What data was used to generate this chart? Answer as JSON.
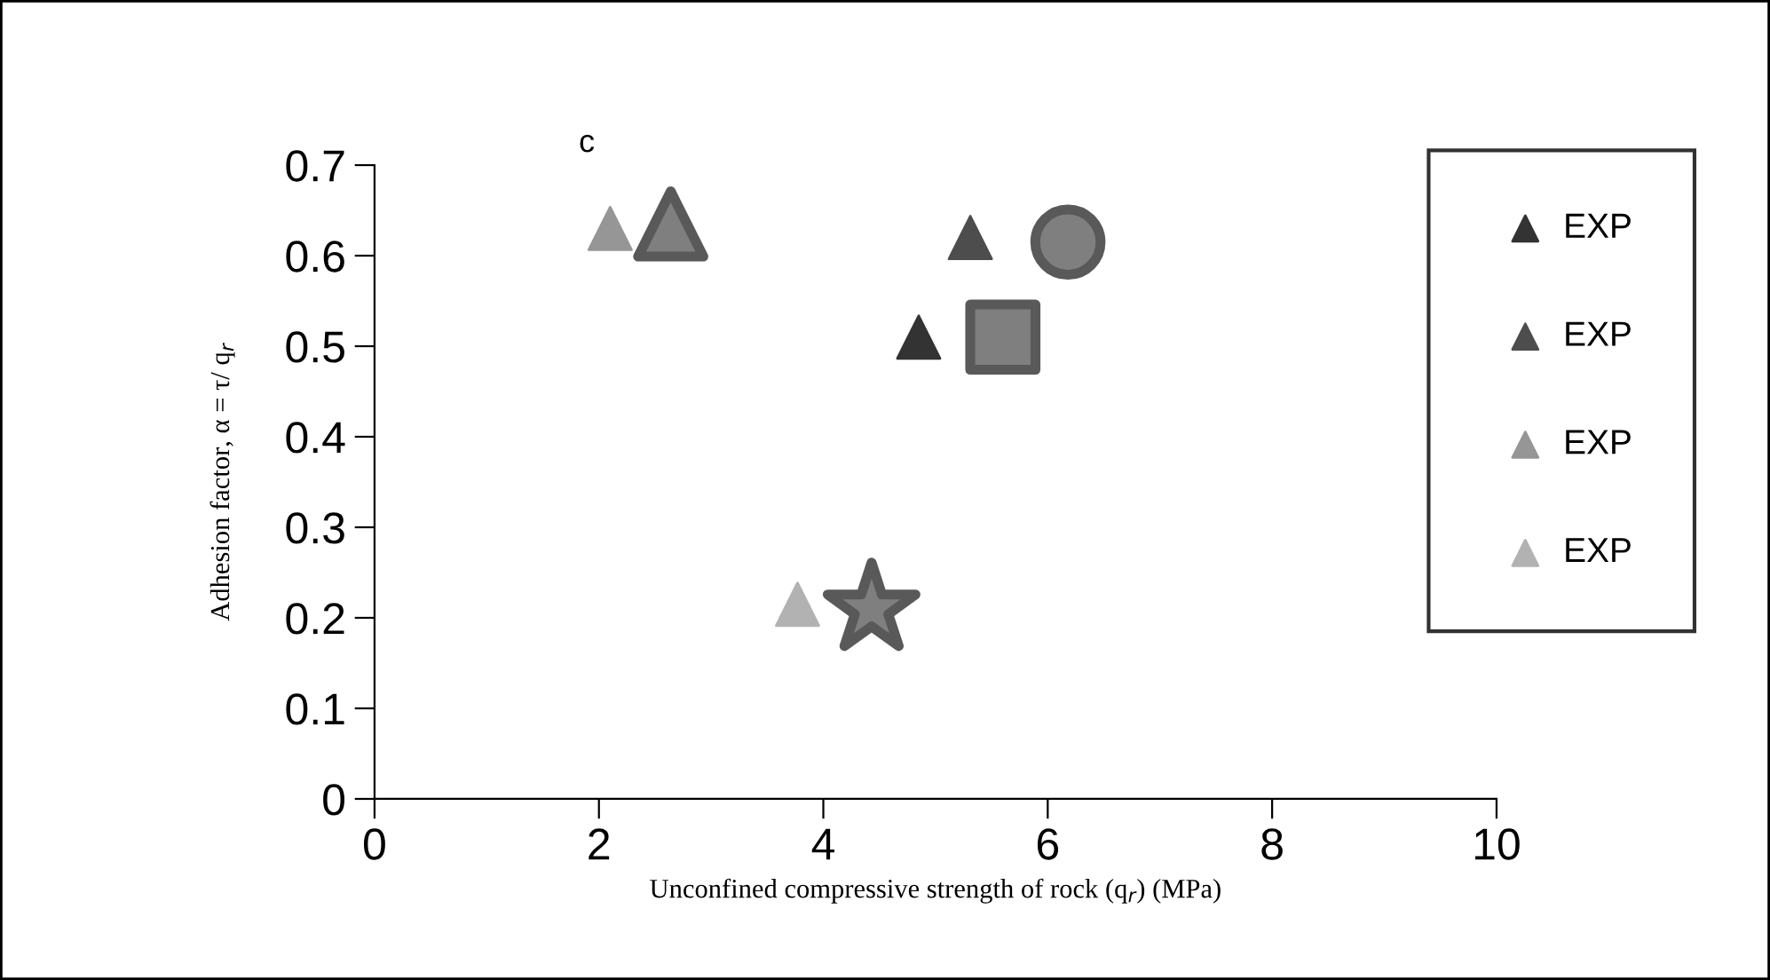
{
  "chart_data": {
    "type": "scatter",
    "xlabel": "Unconfined compressive strength of rock (q$_{r}$) (MPa)",
    "ylabel": "Adhesion factor, α = τ/ q$_{r}$",
    "annotations": [
      "c"
    ],
    "xlim": [
      0,
      10
    ],
    "ylim": [
      0,
      0.7
    ],
    "xticks": [
      0,
      2,
      4,
      6,
      8,
      10
    ],
    "yticks": [
      0,
      0.1,
      0.2,
      0.3,
      0.4,
      0.5,
      0.6,
      0.7
    ],
    "grid": false,
    "legend": "right",
    "series": [
      {
        "name": "EXP",
        "color": "#333333",
        "marker": "triangle",
        "x": [
          4.85
        ],
        "values": [
          0.51
        ]
      },
      {
        "color": "#7f7f7f",
        "marker": "square",
        "x": [
          5.6
        ],
        "values": [
          0.51
        ]
      },
      {
        "name": "EXP",
        "color": "#4d4d4d",
        "marker": "triangle",
        "x": [
          5.31
        ],
        "values": [
          0.62
        ]
      },
      {
        "color": "#7f7f7f",
        "marker": "circle",
        "x": [
          6.18
        ],
        "values": [
          0.615
        ]
      },
      {
        "name": "EXP",
        "color": "#969696",
        "marker": "triangle",
        "x": [
          2.1
        ],
        "values": [
          0.63
        ]
      },
      {
        "color": "#7f7f7f",
        "marker": "triangle",
        "x": [
          2.64
        ],
        "values": [
          0.635
        ]
      },
      {
        "name": "EXP",
        "color": "#b2b2b2",
        "marker": "triangle",
        "x": [
          3.77
        ],
        "values": [
          0.215
        ]
      },
      {
        "color": "#7f7f7f",
        "marker": "star",
        "x": [
          4.43
        ],
        "values": [
          0.21
        ]
      }
    ]
  }
}
